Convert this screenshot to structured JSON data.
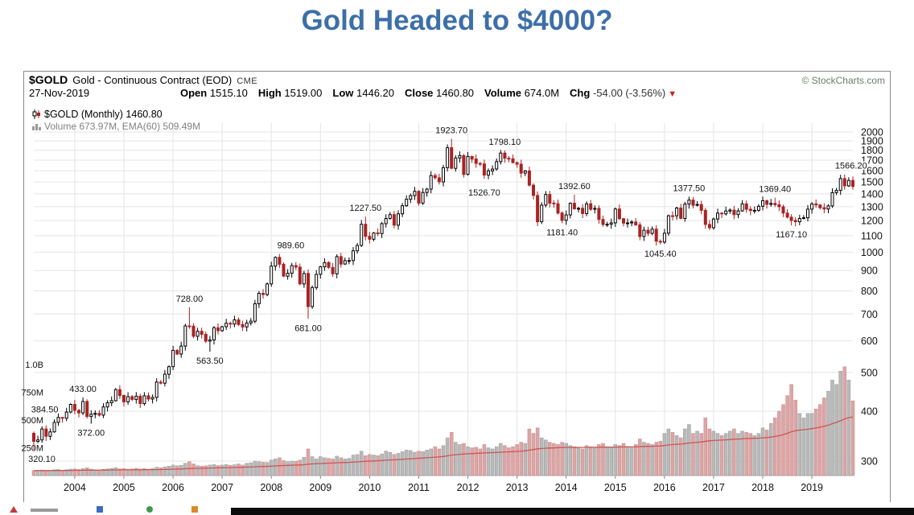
{
  "page_title": "Gold Headed to $4000?",
  "header": {
    "symbol": "$GOLD",
    "name": "Gold - Continuous Contract (EOD)",
    "exchange": "CME",
    "credit": "© StockCharts.com"
  },
  "quote": {
    "date": "27-Nov-2019",
    "open_label": "Open",
    "open": "1515.10",
    "high_label": "High",
    "high": "1519.00",
    "low_label": "Low",
    "low": "1446.20",
    "close_label": "Close",
    "close": "1460.80",
    "volume_label": "Volume",
    "volume": "674.0M",
    "chg_label": "Chg",
    "chg": "-54.00 (-3.56%)",
    "chg_triangle": "▼"
  },
  "legend": {
    "line1": "$GOLD (Monthly) 1460.80",
    "line2": "Volume 673.97M, EMA(60) 509.49M"
  },
  "icons": {
    "price_legend": "candlestick-icon",
    "volume_legend": "histogram-icon",
    "chg_indicator": "down-triangle-icon"
  },
  "chart_data": {
    "type": "candlestick+volume",
    "title": "$GOLD Gold - Continuous Contract (EOD) CME, Monthly",
    "timeframe": "Monthly",
    "start_month": "2003-03",
    "end_month": "2019-11",
    "first_open": 352,
    "price_axis": {
      "scale": "log",
      "min": 300,
      "max": 2000,
      "ticks": [
        300,
        400,
        500,
        600,
        700,
        800,
        900,
        1000,
        1100,
        1200,
        1300,
        1400,
        1500,
        1600,
        1700,
        1800,
        1900,
        2000
      ]
    },
    "volume_axis": {
      "labels": [
        "1.0B",
        "750M",
        "500M",
        "250M"
      ],
      "values_m": [
        1000,
        750,
        500,
        250
      ]
    },
    "x_ticks": [
      "2004",
      "2005",
      "2006",
      "2007",
      "2008",
      "2009",
      "2010",
      "2011",
      "2012",
      "2013",
      "2014",
      "2015",
      "2016",
      "2017",
      "2018",
      "2019"
    ],
    "monthly_close": [
      336,
      339,
      361,
      346,
      355,
      375,
      386,
      384,
      398,
      416,
      402,
      396,
      423,
      388,
      393,
      395,
      391,
      410,
      420,
      425,
      453,
      438,
      422,
      435,
      428,
      436,
      418,
      437,
      429,
      433,
      473,
      470,
      495,
      517,
      568,
      556,
      582,
      654,
      653,
      616,
      634,
      623,
      599,
      603,
      647,
      636,
      651,
      664,
      661,
      677,
      659,
      650,
      665,
      672,
      743,
      789,
      783,
      833,
      923,
      971,
      933,
      871,
      886,
      926,
      918,
      833,
      885,
      731,
      816,
      880,
      919,
      942,
      916,
      883,
      975,
      934,
      953,
      953,
      1008,
      1040,
      1175,
      1096,
      1078,
      1118,
      1113,
      1179,
      1215,
      1242,
      1169,
      1248,
      1307,
      1357,
      1386,
      1421,
      1327,
      1411,
      1439,
      1556,
      1536,
      1500,
      1628,
      1826,
      1622,
      1722,
      1746,
      1566,
      1737,
      1711,
      1668,
      1664,
      1560,
      1598,
      1615,
      1685,
      1771,
      1719,
      1713,
      1676,
      1661,
      1578,
      1597,
      1472,
      1387,
      1192,
      1312,
      1395,
      1327,
      1323,
      1253,
      1202,
      1240,
      1326,
      1284,
      1288,
      1250,
      1322,
      1281,
      1287,
      1208,
      1173,
      1175,
      1184,
      1283,
      1213,
      1183,
      1184,
      1190,
      1171,
      1095,
      1135,
      1115,
      1142,
      1065,
      1060,
      1116,
      1234,
      1233,
      1290,
      1215,
      1320,
      1351,
      1311,
      1317,
      1273,
      1174,
      1152,
      1211,
      1253,
      1247,
      1268,
      1275,
      1242,
      1269,
      1322,
      1281,
      1271,
      1273,
      1303,
      1345,
      1318,
      1325,
      1315,
      1300,
      1253,
      1224,
      1201,
      1192,
      1215,
      1220,
      1282,
      1321,
      1313,
      1292,
      1283,
      1306,
      1410,
      1428,
      1529,
      1466,
      1513,
      1461
    ],
    "monthly_volume_m": [
      45,
      42,
      50,
      47,
      44,
      52,
      55,
      48,
      53,
      58,
      60,
      55,
      62,
      70,
      58,
      52,
      50,
      56,
      60,
      64,
      72,
      61,
      63,
      58,
      60,
      65,
      59,
      62,
      57,
      64,
      75,
      70,
      78,
      85,
      95,
      88,
      92,
      110,
      125,
      105,
      90,
      85,
      88,
      95,
      100,
      90,
      95,
      100,
      92,
      98,
      105,
      95,
      110,
      115,
      130,
      125,
      120,
      118,
      140,
      150,
      160,
      135,
      125,
      130,
      128,
      140,
      165,
      240,
      170,
      150,
      170,
      160,
      155,
      150,
      175,
      160,
      150,
      155,
      185,
      190,
      220,
      180,
      190,
      185,
      180,
      195,
      220,
      210,
      190,
      200,
      215,
      230,
      225,
      210,
      220,
      215,
      230,
      240,
      260,
      240,
      270,
      340,
      390,
      300,
      280,
      290,
      260,
      250,
      255,
      240,
      280,
      250,
      240,
      260,
      290,
      270,
      250,
      260,
      280,
      300,
      290,
      420,
      380,
      430,
      340,
      320,
      300,
      290,
      280,
      300,
      290,
      270,
      260,
      250,
      240,
      270,
      260,
      250,
      280,
      290,
      260,
      250,
      280,
      270,
      290,
      260,
      250,
      280,
      330,
      300,
      290,
      280,
      300,
      310,
      380,
      420,
      390,
      360,
      340,
      420,
      460,
      380,
      400,
      380,
      520,
      420,
      400,
      380,
      360,
      380,
      400,
      420,
      380,
      400,
      390,
      380,
      360,
      380,
      430,
      410,
      470,
      520,
      580,
      640,
      720,
      820,
      680,
      560,
      520,
      560,
      560,
      600,
      640,
      700,
      760,
      860,
      820,
      940,
      980,
      860,
      674
    ],
    "volume_ema_period": 60,
    "volume_ema_last_m": 509.49,
    "annotations": [
      {
        "text": "320.10",
        "month": "2003-03",
        "price": 320.1,
        "side": "below",
        "dx": 10
      },
      {
        "text": "384.50",
        "month": "2003-10",
        "price": 384.5,
        "side": "above",
        "dx": -22
      },
      {
        "text": "372.00",
        "month": "2004-05",
        "price": 372.0,
        "side": "below"
      },
      {
        "text": "433.00",
        "month": "2004-03",
        "price": 433.0,
        "side": "above"
      },
      {
        "text": "563.50",
        "month": "2006-10",
        "price": 563.5,
        "side": "below"
      },
      {
        "text": "728.00",
        "month": "2006-05",
        "price": 728.0,
        "side": "above"
      },
      {
        "text": "681.00",
        "month": "2008-10",
        "price": 681.0,
        "side": "below"
      },
      {
        "text": "989.60",
        "month": "2008-03",
        "price": 989.6,
        "side": "above",
        "dx": 14
      },
      {
        "text": "1227.50",
        "month": "2009-12",
        "price": 1227.5,
        "side": "above"
      },
      {
        "text": "1923.70",
        "month": "2011-09",
        "price": 1923.7,
        "side": "above"
      },
      {
        "text": "1526.70",
        "month": "2012-05",
        "price": 1526.7,
        "side": "below",
        "dy": 6
      },
      {
        "text": "1798.10",
        "month": "2012-10",
        "price": 1798.1,
        "side": "above"
      },
      {
        "text": "1181.40",
        "month": "2013-12",
        "price": 1181.4,
        "side": "below"
      },
      {
        "text": "1392.60",
        "month": "2014-03",
        "price": 1392.6,
        "side": "above"
      },
      {
        "text": "1045.40",
        "month": "2015-12",
        "price": 1045.4,
        "side": "below"
      },
      {
        "text": "1377.50",
        "month": "2016-07",
        "price": 1377.5,
        "side": "above"
      },
      {
        "text": "1369.40",
        "month": "2018-04",
        "price": 1369.4,
        "side": "above"
      },
      {
        "text": "1167.10",
        "month": "2018-08",
        "price": 1167.1,
        "side": "below"
      },
      {
        "text": "1566.20",
        "month": "2019-09",
        "price": 1566.2,
        "side": "above",
        "dx": 8
      }
    ],
    "colors": {
      "candle_up_stroke": "#000000",
      "candle_up_fill": "#ffffff",
      "candle_down": "#aa2222",
      "volume_up": "#b9b9b9",
      "volume_up_stroke": "#9a9a9a",
      "volume_down": "#dba6a6",
      "volume_down_stroke": "#c98888",
      "ema_line": "#cc5555",
      "grid": "#e4e4e4",
      "axis_text": "#111111",
      "title_blue": "#3d6fa8"
    }
  }
}
